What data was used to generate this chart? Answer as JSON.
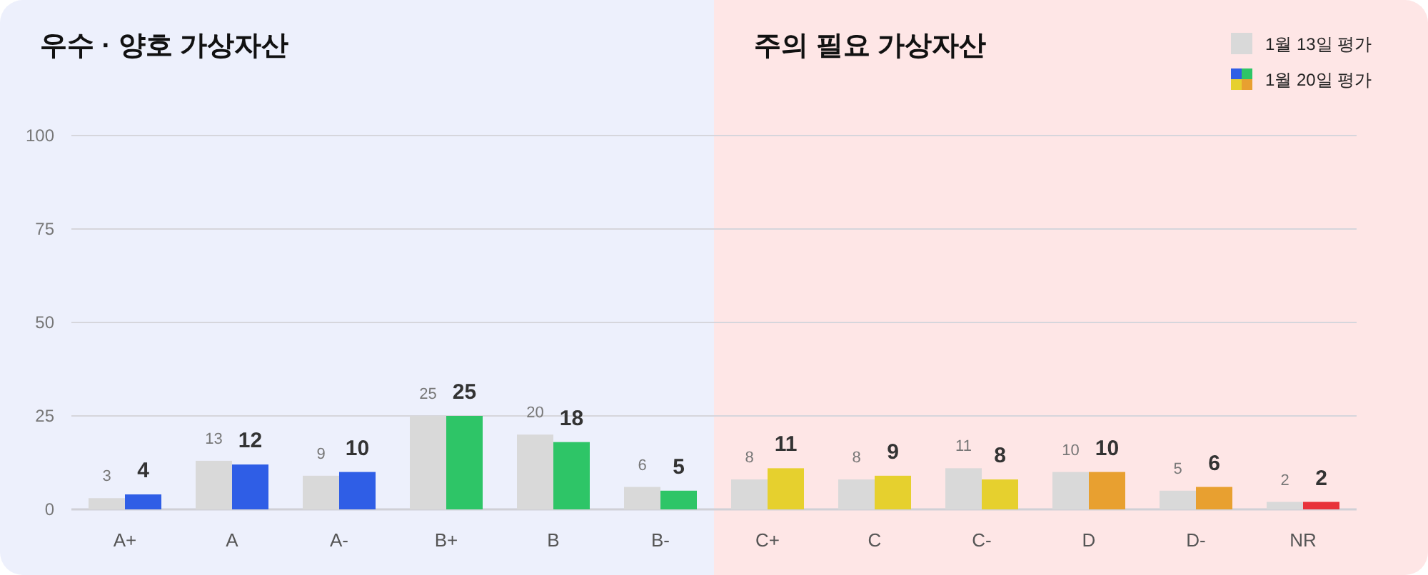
{
  "chart_data": {
    "type": "bar",
    "categories": [
      "A+",
      "A",
      "A-",
      "B+",
      "B",
      "B-",
      "C+",
      "C",
      "C-",
      "D",
      "D-",
      "NR"
    ],
    "series": [
      {
        "name": "1월 13일 평가",
        "color": "#d9d9d9",
        "values": [
          3,
          13,
          9,
          25,
          20,
          6,
          8,
          8,
          11,
          10,
          5,
          2
        ]
      },
      {
        "name": "1월 20일 평가",
        "colors": [
          "#2f5ee6",
          "#2f5ee6",
          "#2f5ee6",
          "#2ec567",
          "#2ec567",
          "#2ec567",
          "#e6d02e",
          "#e6d02e",
          "#e6d02e",
          "#e8a030",
          "#e8a030",
          "#e8323a"
        ],
        "values": [
          4,
          12,
          10,
          25,
          18,
          5,
          11,
          9,
          8,
          10,
          6,
          2
        ]
      }
    ],
    "ylim": [
      0,
      100
    ],
    "yticks": [
      0,
      25,
      50,
      75,
      100
    ],
    "grid": "y",
    "legend": "top right",
    "data_labels": true,
    "bands": [
      {
        "axis": "x",
        "from": "A+",
        "to": "B-",
        "label": "우수 · 양호 가상자산",
        "color": "#edf0fc"
      },
      {
        "axis": "x",
        "from": "C+",
        "to": "NR",
        "label": "주의 필요 가상자산",
        "color": "#fee6e6"
      }
    ]
  }
}
